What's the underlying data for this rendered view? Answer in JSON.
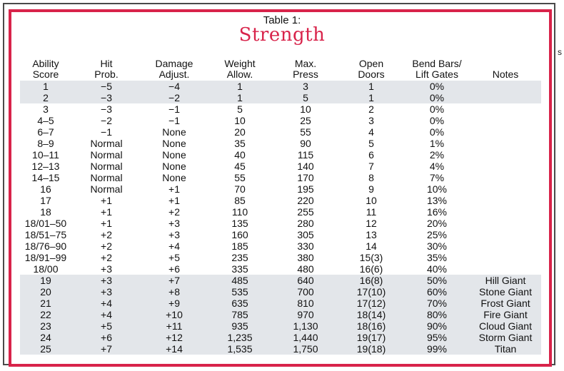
{
  "caption": "Table 1:",
  "title": "Strength",
  "edge_mark": "s",
  "columns": [
    [
      "Ability",
      "Score"
    ],
    [
      "Hit",
      "Prob."
    ],
    [
      "Damage",
      "Adjust."
    ],
    [
      "Weight",
      "Allow."
    ],
    [
      "Max.",
      "Press"
    ],
    [
      "Open",
      "Doors"
    ],
    [
      "Bend Bars/",
      "Lift Gates"
    ],
    [
      "",
      "Notes"
    ]
  ],
  "rows": [
    {
      "shaded": true,
      "cells": [
        "1",
        "−5",
        "−4",
        "1",
        "3",
        "1",
        "0%",
        ""
      ]
    },
    {
      "shaded": true,
      "cells": [
        "2",
        "−3",
        "−2",
        "1",
        "5",
        "1",
        "0%",
        ""
      ]
    },
    {
      "shaded": false,
      "cells": [
        "3",
        "−3",
        "−1",
        "5",
        "10",
        "2",
        "0%",
        ""
      ]
    },
    {
      "shaded": false,
      "cells": [
        "4–5",
        "−2",
        "−1",
        "10",
        "25",
        "3",
        "0%",
        ""
      ]
    },
    {
      "shaded": false,
      "cells": [
        "6–7",
        "−1",
        "None",
        "20",
        "55",
        "4",
        "0%",
        ""
      ]
    },
    {
      "shaded": false,
      "cells": [
        "8–9",
        "Normal",
        "None",
        "35",
        "90",
        "5",
        "1%",
        ""
      ]
    },
    {
      "shaded": false,
      "cells": [
        "10–11",
        "Normal",
        "None",
        "40",
        "115",
        "6",
        "2%",
        ""
      ]
    },
    {
      "shaded": false,
      "cells": [
        "12–13",
        "Normal",
        "None",
        "45",
        "140",
        "7",
        "4%",
        ""
      ]
    },
    {
      "shaded": false,
      "cells": [
        "14–15",
        "Normal",
        "None",
        "55",
        "170",
        "8",
        "7%",
        ""
      ]
    },
    {
      "shaded": false,
      "cells": [
        "16",
        "Normal",
        "+1",
        "70",
        "195",
        "9",
        "10%",
        ""
      ]
    },
    {
      "shaded": false,
      "cells": [
        "17",
        "+1",
        "+1",
        "85",
        "220",
        "10",
        "13%",
        ""
      ]
    },
    {
      "shaded": false,
      "cells": [
        "18",
        "+1",
        "+2",
        "110",
        "255",
        "11",
        "16%",
        ""
      ]
    },
    {
      "shaded": false,
      "cells": [
        "18/01–50",
        "+1",
        "+3",
        "135",
        "280",
        "12",
        "20%",
        ""
      ]
    },
    {
      "shaded": false,
      "cells": [
        "18/51–75",
        "+2",
        "+3",
        "160",
        "305",
        "13",
        "25%",
        ""
      ]
    },
    {
      "shaded": false,
      "cells": [
        "18/76–90",
        "+2",
        "+4",
        "185",
        "330",
        "14",
        "30%",
        ""
      ]
    },
    {
      "shaded": false,
      "cells": [
        "18/91–99",
        "+2",
        "+5",
        "235",
        "380",
        "15(3)",
        "35%",
        ""
      ]
    },
    {
      "shaded": false,
      "cells": [
        "18/00",
        "+3",
        "+6",
        "335",
        "480",
        "16(6)",
        "40%",
        ""
      ]
    },
    {
      "shaded": true,
      "cells": [
        "19",
        "+3",
        "+7",
        "485",
        "640",
        "16(8)",
        "50%",
        "Hill Giant"
      ]
    },
    {
      "shaded": true,
      "cells": [
        "20",
        "+3",
        "+8",
        "535",
        "700",
        "17(10)",
        "60%",
        "Stone Giant"
      ]
    },
    {
      "shaded": true,
      "cells": [
        "21",
        "+4",
        "+9",
        "635",
        "810",
        "17(12)",
        "70%",
        "Frost Giant"
      ]
    },
    {
      "shaded": true,
      "cells": [
        "22",
        "+4",
        "+10",
        "785",
        "970",
        "18(14)",
        "80%",
        "Fire Giant"
      ]
    },
    {
      "shaded": true,
      "cells": [
        "23",
        "+5",
        "+11",
        "935",
        "1,130",
        "18(16)",
        "90%",
        "Cloud Giant"
      ]
    },
    {
      "shaded": true,
      "cells": [
        "24",
        "+6",
        "+12",
        "1,235",
        "1,440",
        "19(17)",
        "95%",
        "Storm Giant"
      ]
    },
    {
      "shaded": true,
      "cells": [
        "25",
        "+7",
        "+14",
        "1,535",
        "1,750",
        "19(18)",
        "99%",
        "Titan"
      ]
    }
  ],
  "colors": {
    "accent": "#d8234a",
    "row_shade": "#e3e6ea",
    "text": "#111111"
  }
}
